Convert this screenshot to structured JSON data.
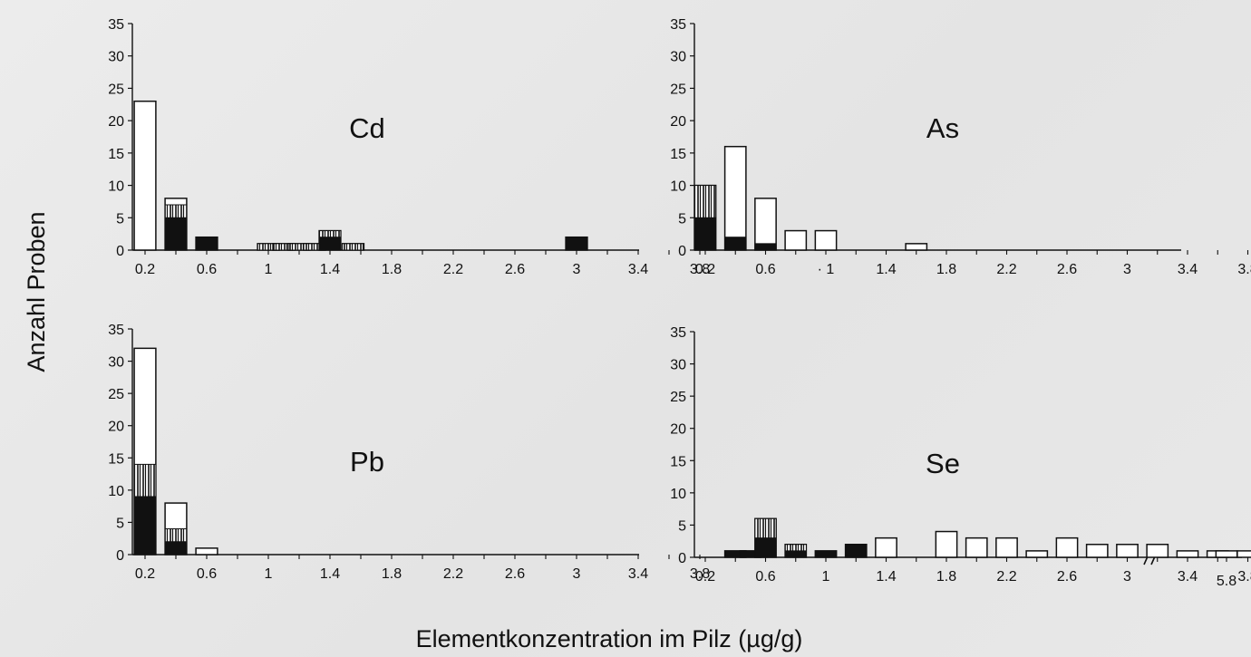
{
  "y_axis_label": "Anzahl Proben",
  "x_axis_label": "Elementkonzentration im Pilz (µg/g)",
  "colors": {
    "bar_fill": "#ffffff",
    "stroke": "#111111",
    "solid": "#111111"
  },
  "legend_note": "Bar segments: white = open, black = solid fill, striped = vertical hatch",
  "chart_data": [
    {
      "type": "bar",
      "panel": "Cd",
      "title": "Cd",
      "ylim": [
        0,
        35
      ],
      "yticks": [
        0,
        5,
        10,
        15,
        20,
        25,
        30,
        35
      ],
      "xlim": [
        0.06,
        4.2
      ],
      "xticks": [
        "0.2",
        "0.6",
        "1",
        "1.4",
        "1.8",
        "2.2",
        "2.6",
        "3",
        "3.4",
        "3.8"
      ],
      "bin_width": 0.14,
      "bars": [
        {
          "x": 0.2,
          "total": 23,
          "solid": 0,
          "hatched": 0
        },
        {
          "x": 0.4,
          "total": 8,
          "solid": 5,
          "hatched": 2
        },
        {
          "x": 0.6,
          "total": 2,
          "solid": 2,
          "hatched": 0
        },
        {
          "x": 1.0,
          "total": 1,
          "solid": 0,
          "hatched": 1
        },
        {
          "x": 1.1,
          "total": 1,
          "solid": 0,
          "hatched": 1
        },
        {
          "x": 1.2,
          "total": 1,
          "solid": 0,
          "hatched": 1
        },
        {
          "x": 1.3,
          "total": 1,
          "solid": 0,
          "hatched": 1
        },
        {
          "x": 1.4,
          "total": 3,
          "solid": 2,
          "hatched": 1
        },
        {
          "x": 1.55,
          "total": 1,
          "solid": 0,
          "hatched": 1
        },
        {
          "x": 3.0,
          "total": 2,
          "solid": 2,
          "hatched": 0
        }
      ]
    },
    {
      "type": "bar",
      "panel": "As",
      "title": "As",
      "ylim": [
        0,
        35
      ],
      "yticks": [
        0,
        5,
        10,
        15,
        20,
        25,
        30,
        35
      ],
      "xlim": [
        0.06,
        4.2
      ],
      "xticks": [
        "0.2",
        "0.6",
        "· 1",
        "1.4",
        "1.8",
        "2.2",
        "2.6",
        "3",
        "3.4",
        "3.8"
      ],
      "bin_width": 0.14,
      "bars": [
        {
          "x": 0.2,
          "total": 10,
          "solid": 5,
          "hatched": 5
        },
        {
          "x": 0.4,
          "total": 16,
          "solid": 2,
          "hatched": 0
        },
        {
          "x": 0.6,
          "total": 8,
          "solid": 1,
          "hatched": 0
        },
        {
          "x": 0.8,
          "total": 3,
          "solid": 0,
          "hatched": 0
        },
        {
          "x": 1.0,
          "total": 3,
          "solid": 0,
          "hatched": 0
        },
        {
          "x": 1.6,
          "total": 1,
          "solid": 0,
          "hatched": 0
        }
      ]
    },
    {
      "type": "bar",
      "panel": "Pb",
      "title": "Pb",
      "ylim": [
        0,
        35
      ],
      "yticks": [
        0,
        5,
        10,
        15,
        20,
        25,
        30,
        35
      ],
      "xlim": [
        0.06,
        4.2
      ],
      "xticks": [
        "0.2",
        "0.6",
        "1",
        "1.4",
        "1.8",
        "2.2",
        "2.6",
        "3",
        "3.4",
        "3.8"
      ],
      "bin_width": 0.14,
      "bars": [
        {
          "x": 0.2,
          "total": 32,
          "solid": 9,
          "hatched": 5
        },
        {
          "x": 0.4,
          "total": 8,
          "solid": 2,
          "hatched": 2
        },
        {
          "x": 0.6,
          "total": 1,
          "solid": 0,
          "hatched": 0
        }
      ]
    },
    {
      "type": "bar",
      "panel": "Se",
      "title": "Se",
      "ylim": [
        0,
        35
      ],
      "yticks": [
        0,
        5,
        10,
        15,
        20,
        25,
        30,
        35
      ],
      "xlim": [
        0.06,
        4.2
      ],
      "xticks": [
        "0.2",
        "0.6",
        "1",
        "1.4",
        "1.8",
        "2.2",
        "2.6",
        "3",
        "3.4",
        "3.8"
      ],
      "axis_break": true,
      "extra_tick": "5.8",
      "bin_width": 0.14,
      "bars": [
        {
          "x": 0.4,
          "total": 1,
          "solid": 1,
          "hatched": 0
        },
        {
          "x": 0.5,
          "total": 1,
          "solid": 1,
          "hatched": 0
        },
        {
          "x": 0.6,
          "total": 6,
          "solid": 3,
          "hatched": 3
        },
        {
          "x": 0.8,
          "total": 2,
          "solid": 1,
          "hatched": 1
        },
        {
          "x": 1.0,
          "total": 1,
          "solid": 1,
          "hatched": 0
        },
        {
          "x": 1.2,
          "total": 2,
          "solid": 2,
          "hatched": 0
        },
        {
          "x": 1.4,
          "total": 3,
          "solid": 0,
          "hatched": 0
        },
        {
          "x": 1.8,
          "total": 4,
          "solid": 0,
          "hatched": 0
        },
        {
          "x": 2.0,
          "total": 3,
          "solid": 0,
          "hatched": 0
        },
        {
          "x": 2.2,
          "total": 3,
          "solid": 0,
          "hatched": 0
        },
        {
          "x": 2.4,
          "total": 1,
          "solid": 0,
          "hatched": 0
        },
        {
          "x": 2.6,
          "total": 3,
          "solid": 0,
          "hatched": 0
        },
        {
          "x": 2.8,
          "total": 2,
          "solid": 0,
          "hatched": 0
        },
        {
          "x": 3.0,
          "total": 2,
          "solid": 0,
          "hatched": 0
        },
        {
          "x": 3.2,
          "total": 2,
          "solid": 0,
          "hatched": 0
        },
        {
          "x": 3.4,
          "total": 1,
          "solid": 0,
          "hatched": 0
        },
        {
          "x": 3.6,
          "total": 1,
          "solid": 0,
          "hatched": 0
        },
        {
          "x": 3.8,
          "total": 1,
          "solid": 0,
          "hatched": 0
        },
        {
          "x": 4.0,
          "total": 2,
          "solid": 0,
          "hatched": 0
        },
        {
          "x": 5.8,
          "total": 1,
          "solid": 0,
          "hatched": 0,
          "after_break": true
        }
      ]
    }
  ]
}
